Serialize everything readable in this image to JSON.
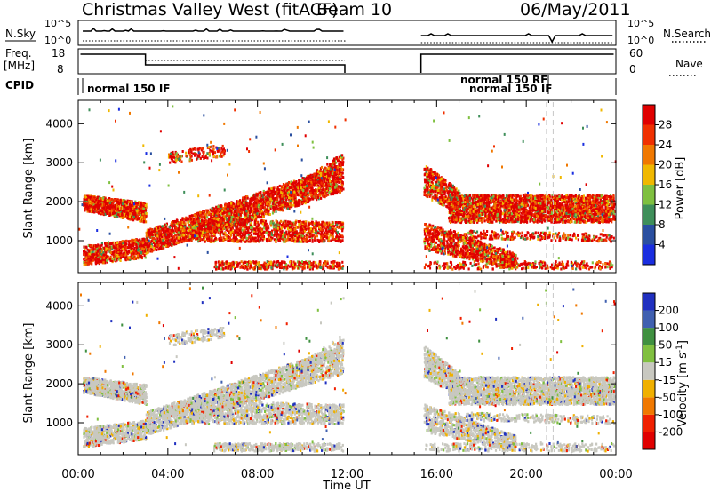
{
  "header": {
    "station": "Christmas Valley West (fitACF)",
    "beam": "Beam 10",
    "date": "06/May/2011"
  },
  "chart_data": [
    {
      "type": "line",
      "name": "nsky-nsearch",
      "left_label": "N.Sky",
      "right_label": "N.Search",
      "left_ticks": [
        "10^5",
        "10^0"
      ],
      "right_ticks": [
        "10^5",
        "10^0"
      ],
      "scale": "log",
      "ylim": [
        1,
        100000
      ]
    },
    {
      "type": "line",
      "name": "freq-nave",
      "left_label_1": "Freq.",
      "left_label_2": "[MHz]",
      "right_label": "Nave",
      "left_ticks": [
        18,
        8
      ],
      "right_ticks": [
        60,
        0
      ],
      "ylim_left": [
        8,
        18
      ],
      "ylim_right": [
        0,
        60
      ]
    },
    {
      "type": "table",
      "name": "cpid",
      "label": "CPID",
      "entries": [
        {
          "text": "normal 150 IF",
          "start_hour": 0.1
        },
        {
          "text": "normal 150 RF",
          "start_hour": 21.0
        },
        {
          "text": "normal 150 IF",
          "start_hour": 21.0
        }
      ]
    },
    {
      "type": "heatmap",
      "name": "power",
      "ylabel": "Slant Range [km]",
      "yticks": [
        1000,
        2000,
        3000,
        4000
      ],
      "ylim": [
        180,
        4600
      ],
      "xlim": [
        0,
        24
      ],
      "colorbar_label": "Power [dB]",
      "colorbar_ticks": [
        4,
        8,
        12,
        16,
        20,
        24,
        28
      ],
      "colorbar_colors": [
        "#1a2ee0",
        "#2a4fa0",
        "#3f8f5a",
        "#7fc040",
        "#f0b800",
        "#f07800",
        "#f03000",
        "#e00000"
      ],
      "data_gaps_hours": [
        [
          11.9,
          15.4
        ]
      ]
    },
    {
      "type": "heatmap",
      "name": "velocity",
      "ylabel": "Slant Range [km]",
      "yticks": [
        1000,
        2000,
        3000,
        4000
      ],
      "ylim": [
        180,
        4600
      ],
      "xlim": [
        0,
        24
      ],
      "colorbar_label": "Velocity [m s^-1]",
      "colorbar_ticks": [
        200,
        100,
        50,
        15,
        -15,
        -50,
        -100,
        -200
      ],
      "colorbar_colors": [
        "#2030c0",
        "#4060b0",
        "#3f9040",
        "#80c040",
        "#c8c8c0",
        "#f0b000",
        "#f07800",
        "#f02000",
        "#e00000"
      ],
      "data_gaps_hours": [
        [
          11.9,
          15.4
        ]
      ]
    }
  ],
  "xaxis": {
    "ticks": [
      "00:00",
      "04:00",
      "08:00",
      "12:00",
      "16:00",
      "20:00",
      "00:00"
    ],
    "label": "Time UT"
  }
}
